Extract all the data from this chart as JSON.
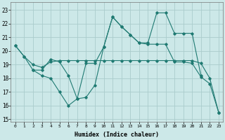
{
  "bg_color": "#cce8e8",
  "grid_color": "#aacccc",
  "line_color": "#1f7a72",
  "xlim": [
    -0.5,
    23.5
  ],
  "ylim": [
    14.8,
    23.6
  ],
  "yticks": [
    15,
    16,
    17,
    18,
    19,
    20,
    21,
    22,
    23
  ],
  "xticks": [
    0,
    1,
    2,
    3,
    4,
    5,
    6,
    7,
    8,
    9,
    10,
    11,
    12,
    13,
    14,
    15,
    16,
    17,
    18,
    19,
    20,
    21,
    22,
    23
  ],
  "xlabel": "Humidex (Indice chaleur)",
  "line1_x": [
    0,
    1,
    2,
    3,
    4,
    5,
    6,
    7,
    8,
    9,
    10,
    11,
    12,
    13,
    14,
    15,
    16,
    17,
    18,
    19,
    20,
    21,
    22,
    23
  ],
  "line1_y": [
    20.4,
    19.6,
    18.6,
    18.2,
    18.0,
    17.0,
    16.0,
    16.5,
    16.6,
    17.5,
    20.3,
    22.5,
    21.8,
    21.2,
    20.6,
    20.5,
    20.5,
    20.5,
    19.2,
    19.2,
    19.1,
    18.1,
    17.6,
    15.5
  ],
  "line2_x": [
    0,
    1,
    2,
    3,
    4,
    5,
    6,
    7,
    8,
    9,
    10,
    11,
    12,
    13,
    14,
    15,
    16,
    17,
    18,
    19,
    20,
    21,
    22,
    23
  ],
  "line2_y": [
    20.4,
    19.6,
    19.0,
    18.8,
    19.2,
    19.3,
    19.3,
    19.3,
    19.3,
    19.3,
    19.3,
    19.3,
    19.3,
    19.3,
    19.3,
    19.3,
    19.3,
    19.3,
    19.3,
    19.3,
    19.3,
    19.1,
    18.0,
    15.5
  ],
  "line3_x": [
    2,
    3,
    4,
    5,
    6,
    7,
    8,
    9,
    10,
    11,
    12,
    13,
    14,
    15,
    16,
    17,
    18,
    19,
    20,
    21
  ],
  "line3_y": [
    18.6,
    18.6,
    19.4,
    19.2,
    18.2,
    16.5,
    19.1,
    19.1,
    20.3,
    22.5,
    21.8,
    21.2,
    20.6,
    20.6,
    22.8,
    22.8,
    21.3,
    21.3,
    21.3,
    18.2
  ]
}
